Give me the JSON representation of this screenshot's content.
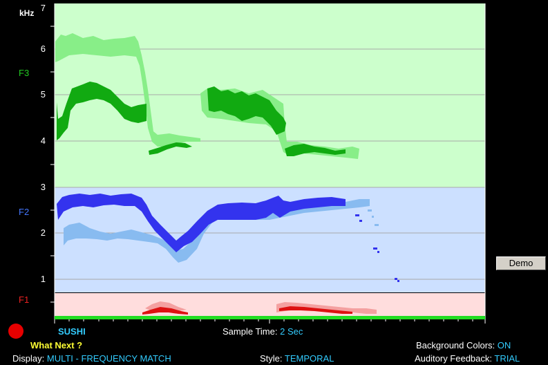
{
  "axis": {
    "unit": "kHz",
    "ticks": [
      "7",
      "6",
      "5",
      "4",
      "3",
      "2",
      "1"
    ]
  },
  "bands": {
    "f3": "F3",
    "f2": "F2",
    "f1": "F1"
  },
  "word": "SUSHI",
  "sample_time": {
    "label": "Sample Time:",
    "value": "2 Sec"
  },
  "what_next": "What Next ?",
  "display": {
    "label": "Display:",
    "value": "MULTI - FREQUENCY MATCH"
  },
  "style": {
    "label": "Style:",
    "value": "TEMPORAL"
  },
  "background_colors": {
    "label": "Background Colors:",
    "value": "ON"
  },
  "auditory_feedback": {
    "label": "Auditory Feedback:",
    "value": "TRIAL"
  },
  "demo_button": "Demo",
  "colors": {
    "f3_bg": "#ccffcc",
    "f2_bg": "#cce0ff",
    "f1_bg": "#ffdddd",
    "green_dark": "#11aa11",
    "green_light": "#88ee88",
    "blue_dark": "#3333ee",
    "blue_light": "#88bbf0",
    "red_dark": "#dd1111",
    "red_light": "#f4a0a0",
    "baseline": "#22dd22"
  }
}
